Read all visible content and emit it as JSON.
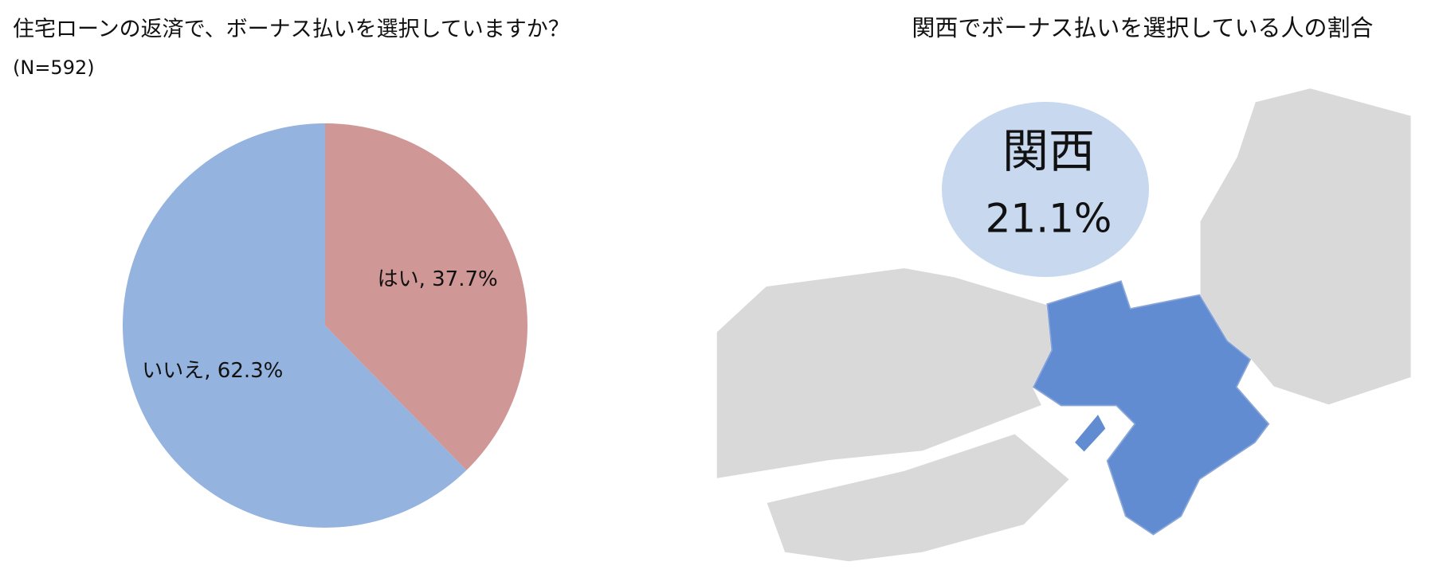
{
  "chart_data": {
    "type": "pie",
    "title": "住宅ローンの返済で、ボーナス払いを選択していますか？",
    "subtitle": "(N=592)",
    "values": [
      37.7,
      62.3
    ],
    "value_labels": [
      "はい, 37.7%",
      "いいえ, 62.3%"
    ],
    "colors": [
      "#cf9795",
      "#95b3df"
    ]
  },
  "map_panel": {
    "title": "関西でボーナス払いを選択している人の割合",
    "region_label": "関西",
    "value": 21.1,
    "value_label": "21.1%",
    "region_color": "#628cd1",
    "bubble_color": "#c7d8ef"
  }
}
